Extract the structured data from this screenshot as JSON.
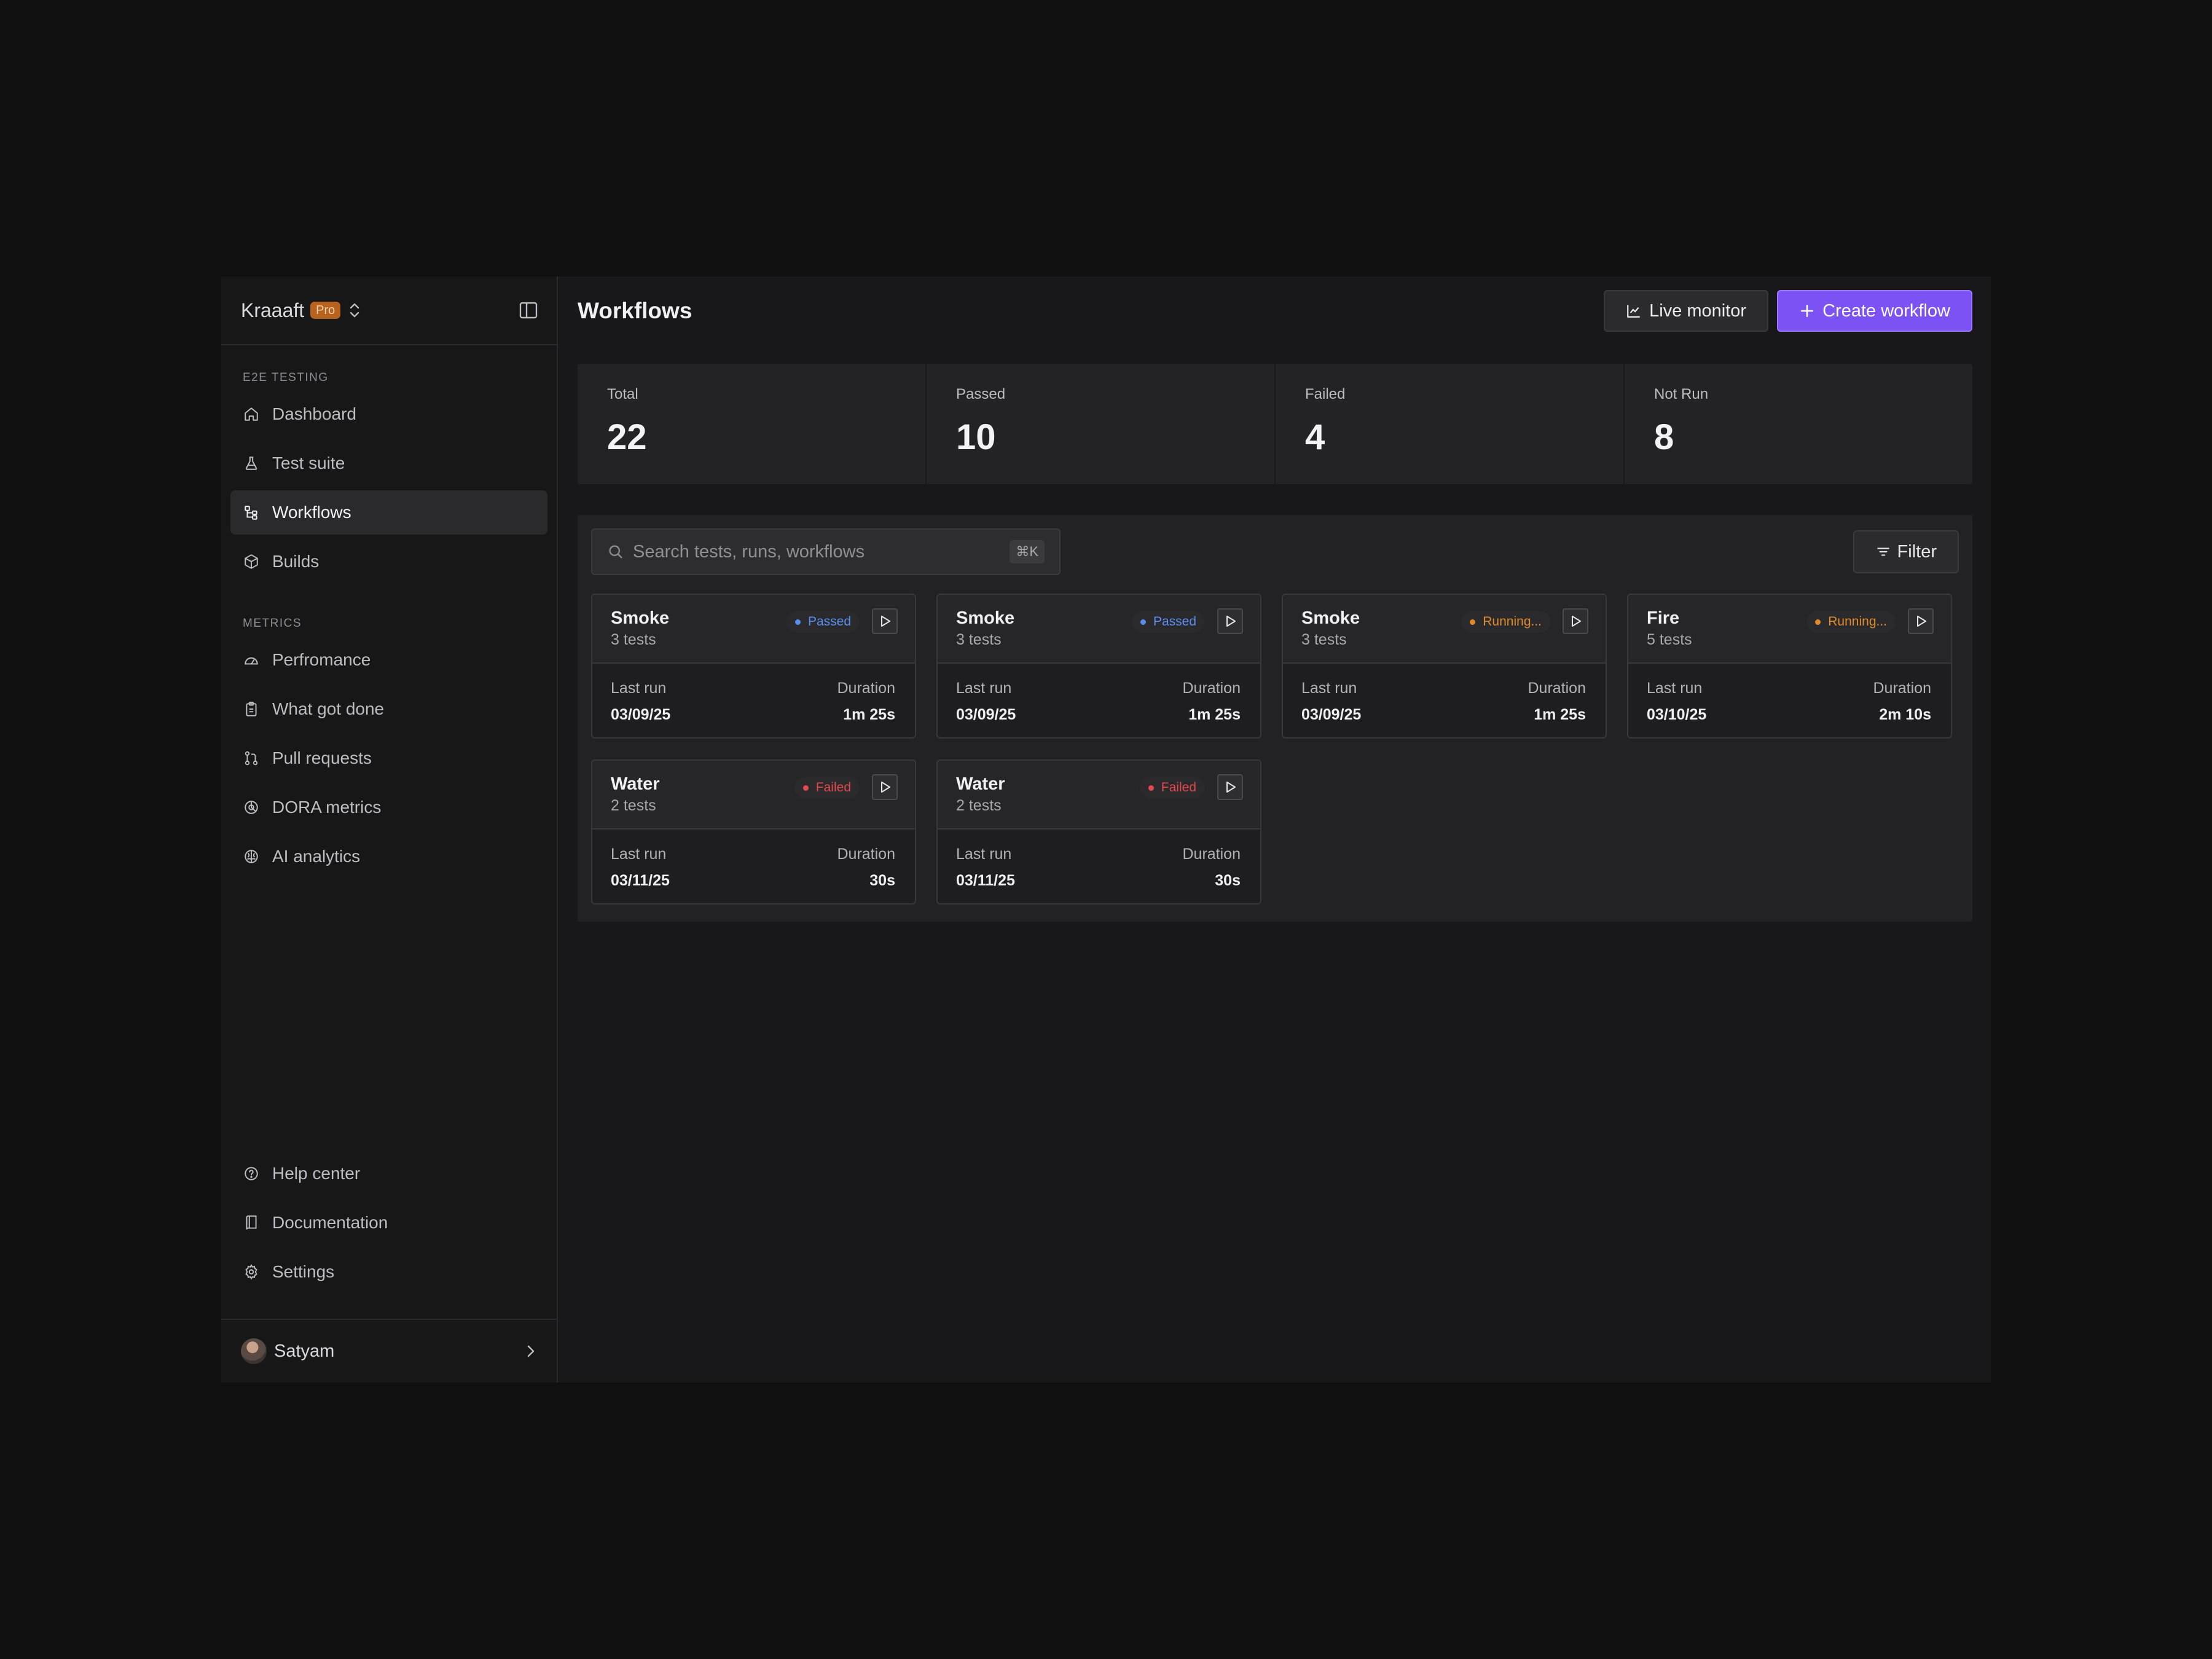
{
  "brand": {
    "name": "Kraaaft",
    "badge": "Pro"
  },
  "sidebar": {
    "section1_label": "E2E TESTING",
    "section1_items": [
      {
        "label": "Dashboard",
        "icon": "home-icon"
      },
      {
        "label": "Test suite",
        "icon": "flask-icon"
      },
      {
        "label": "Workflows",
        "icon": "workflow-icon",
        "active": true
      },
      {
        "label": "Builds",
        "icon": "box-icon"
      }
    ],
    "section2_label": "METRICS",
    "section2_items": [
      {
        "label": "Perfromance",
        "icon": "gauge-icon"
      },
      {
        "label": "What got done",
        "icon": "clipboard-icon"
      },
      {
        "label": "Pull requests",
        "icon": "git-pull-request-icon"
      },
      {
        "label": "DORA metrics",
        "icon": "chart-pie-icon"
      },
      {
        "label": "AI analytics",
        "icon": "brain-icon"
      }
    ],
    "footer_items": [
      {
        "label": "Help center",
        "icon": "help-circle-icon"
      },
      {
        "label": "Documentation",
        "icon": "book-icon"
      },
      {
        "label": "Settings",
        "icon": "gear-icon"
      }
    ],
    "user": {
      "name": "Satyam"
    }
  },
  "header": {
    "title": "Workflows",
    "live_monitor_label": "Live monitor",
    "create_label": "Create workflow"
  },
  "stats": [
    {
      "label": "Total",
      "value": "22"
    },
    {
      "label": "Passed",
      "value": "10"
    },
    {
      "label": "Failed",
      "value": "4"
    },
    {
      "label": "Not Run",
      "value": "8"
    }
  ],
  "search": {
    "placeholder": "Search tests, runs, workflows",
    "shortcut": "⌘K"
  },
  "filter_label": "Filter",
  "card_labels": {
    "last_run": "Last run",
    "duration": "Duration"
  },
  "colors": {
    "accent": "#7c52f4",
    "passed": "#5b8def",
    "running": "#e08a2c",
    "failed": "#e5484d"
  },
  "workflows": [
    {
      "name": "Smoke",
      "tests": "3 tests",
      "status": "Passed",
      "status_key": "passed",
      "last_run": "03/09/25",
      "duration": "1m 25s"
    },
    {
      "name": "Smoke",
      "tests": "3 tests",
      "status": "Passed",
      "status_key": "passed",
      "last_run": "03/09/25",
      "duration": "1m 25s"
    },
    {
      "name": "Smoke",
      "tests": "3 tests",
      "status": "Running...",
      "status_key": "running",
      "last_run": "03/09/25",
      "duration": "1m 25s"
    },
    {
      "name": "Fire",
      "tests": "5 tests",
      "status": "Running...",
      "status_key": "running",
      "last_run": "03/10/25",
      "duration": "2m 10s"
    },
    {
      "name": "Water",
      "tests": "2 tests",
      "status": "Failed",
      "status_key": "failed",
      "last_run": "03/11/25",
      "duration": "30s"
    },
    {
      "name": "Water",
      "tests": "2 tests",
      "status": "Failed",
      "status_key": "failed",
      "last_run": "03/11/25",
      "duration": "30s"
    }
  ]
}
